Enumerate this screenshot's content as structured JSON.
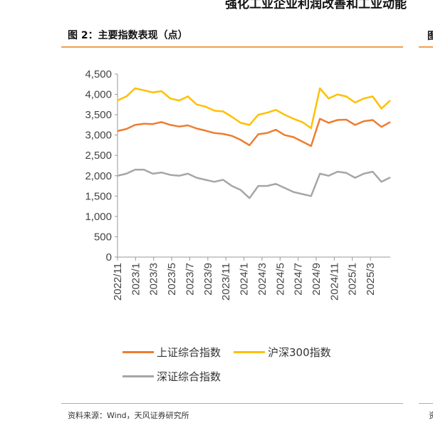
{
  "page": {
    "top_partial_text": "强化工业企业利润改善和工业动能",
    "right_partial_title": "图",
    "right_partial_source": "资"
  },
  "figure": {
    "title": "图 2：主要指数表现（点）",
    "source": "资料来源：Wind，天风证券研究所"
  },
  "colors": {
    "accent_rule": "#f0a04b",
    "shanghai": "#ee7d31",
    "hs300": "#ffc000",
    "shenzhen": "#a6a6a6",
    "axis": "#999999"
  },
  "chart_data": {
    "type": "line",
    "title": "图 2：主要指数表现（点）",
    "xlabel": "",
    "ylabel": "",
    "ylim": [
      0,
      4500
    ],
    "yticks": [
      0,
      500,
      1000,
      1500,
      2000,
      2500,
      3000,
      3500,
      4000,
      4500
    ],
    "ytick_labels": [
      "0",
      "500",
      "1,000",
      "1,500",
      "2,000",
      "2,500",
      "3,000",
      "3,500",
      "4,000",
      "4,500"
    ],
    "grid": false,
    "legend_position": "bottom",
    "x_range": [
      "2022/11",
      "2025/5"
    ],
    "x_tick_labels": [
      "2022/11",
      "2023/1",
      "2023/3",
      "2023/5",
      "2023/7",
      "2023/9",
      "2023/11",
      "2024/1",
      "2024/3",
      "2024/5",
      "2024/7",
      "2024/9",
      "2024/11",
      "2025/1",
      "2025/3"
    ],
    "x": [
      "2022/11",
      "2022/12",
      "2023/1",
      "2023/2",
      "2023/3",
      "2023/4",
      "2023/5",
      "2023/6",
      "2023/7",
      "2023/8",
      "2023/9",
      "2023/10",
      "2023/11",
      "2023/12",
      "2024/1",
      "2024/2",
      "2024/3",
      "2024/4",
      "2024/5",
      "2024/6",
      "2024/7",
      "2024/8",
      "2024/9a",
      "2024/9b",
      "2024/10",
      "2024/11",
      "2024/12",
      "2025/1",
      "2025/2",
      "2025/3",
      "2025/4",
      "2025/5"
    ],
    "series": [
      {
        "name": "上证综合指数",
        "values": [
          3100,
          3150,
          3250,
          3280,
          3270,
          3320,
          3250,
          3210,
          3240,
          3160,
          3110,
          3050,
          3030,
          2980,
          2880,
          2750,
          3020,
          3050,
          3130,
          3000,
          2950,
          2840,
          2730,
          3400,
          3300,
          3370,
          3380,
          3250,
          3340,
          3370,
          3200,
          3320
        ]
      },
      {
        "name": "沪深300指数",
        "values": [
          3850,
          3950,
          4150,
          4100,
          4050,
          4080,
          3900,
          3850,
          3950,
          3750,
          3700,
          3600,
          3580,
          3450,
          3300,
          3250,
          3500,
          3550,
          3620,
          3500,
          3400,
          3320,
          3170,
          4150,
          3900,
          4000,
          3950,
          3800,
          3900,
          3950,
          3650,
          3850
        ]
      },
      {
        "name": "深证综合指数",
        "values": [
          2000,
          2050,
          2150,
          2150,
          2050,
          2080,
          2020,
          2000,
          2050,
          1950,
          1900,
          1850,
          1900,
          1750,
          1650,
          1450,
          1750,
          1750,
          1800,
          1700,
          1600,
          1550,
          1500,
          2050,
          2000,
          2100,
          2070,
          1950,
          2050,
          2100,
          1850,
          1960
        ]
      }
    ]
  }
}
